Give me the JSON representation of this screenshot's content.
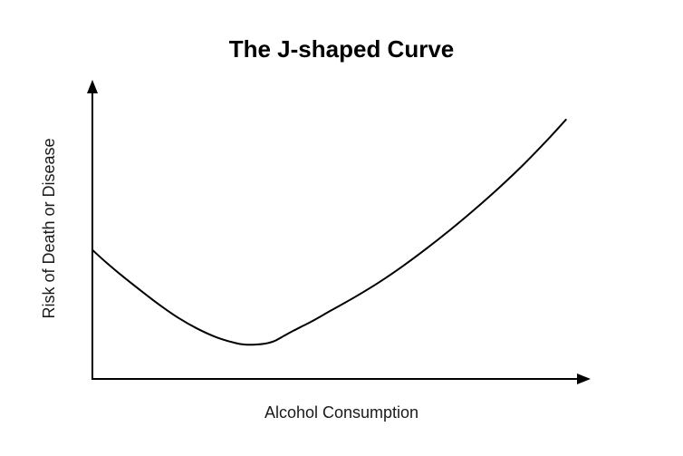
{
  "chart_data": {
    "type": "line",
    "title": "The J-shaped Curve",
    "xlabel": "Alcohol Consumption",
    "ylabel": "Risk of Death or Disease",
    "xlim": [
      0,
      100
    ],
    "ylim": [
      0,
      100
    ],
    "grid": false,
    "legend": "none",
    "show_tick_labels": false,
    "series": [
      {
        "x": [
          0,
          3,
          6,
          10,
          14,
          18,
          22,
          26,
          30,
          32,
          34,
          36,
          38,
          40,
          42,
          44,
          46,
          50,
          55,
          60,
          65,
          70,
          75,
          80,
          85,
          90,
          95,
          99
        ],
        "values": [
          45,
          40.5,
          36.3,
          31,
          25.9,
          21.3,
          17.5,
          14.5,
          12.5,
          12,
          12,
          12.3,
          13.2,
          15,
          16.8,
          18.5,
          20.2,
          24,
          28.7,
          33.8,
          39.5,
          45.7,
          52.3,
          59.3,
          66.7,
          74.6,
          83.2,
          90.5
        ]
      }
    ],
    "colors": {
      "line": "#000000",
      "axes": "#000000",
      "background": "#ffffff"
    }
  }
}
